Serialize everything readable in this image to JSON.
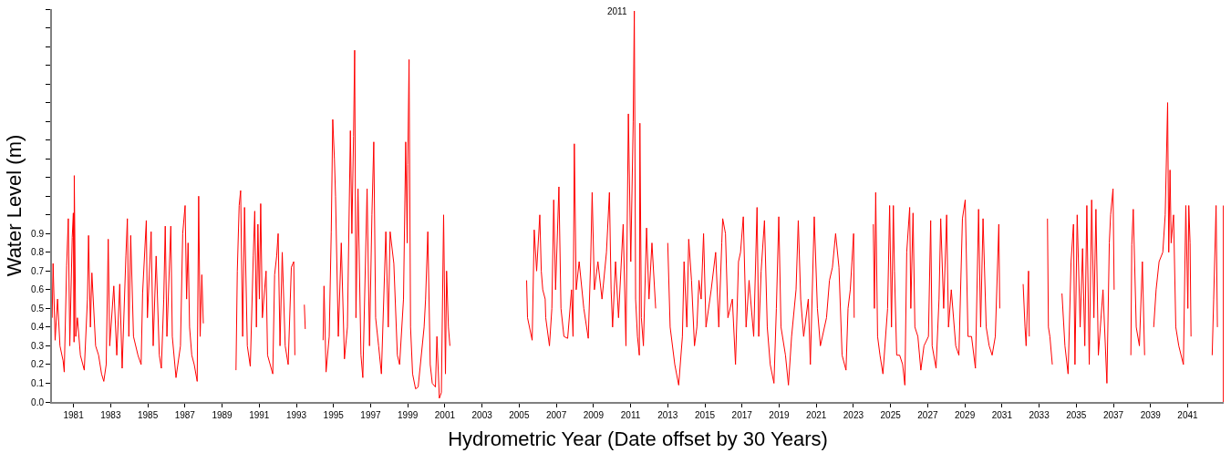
{
  "chart_data": {
    "type": "line",
    "xlabel": "Hydrometric Year (Date offset by 30 Years)",
    "ylabel": "Water Level (m)",
    "xlim": [
      1979.84,
      2042.94
    ],
    "xticks": [
      1981,
      1983,
      1985,
      1987,
      1989,
      1991,
      1993,
      1995,
      1997,
      1999,
      2001,
      2003,
      2005,
      2007,
      2009,
      2011,
      2013,
      2015,
      2017,
      2019,
      2021,
      2023,
      2025,
      2027,
      2029,
      2031,
      2033,
      2035,
      2037,
      2039,
      2041
    ],
    "ylim": [
      0,
      2.1
    ],
    "yticks": [
      {
        "value": 0,
        "label": "0.0"
      },
      {
        "value": 0.1,
        "label": "0.1"
      },
      {
        "value": 0.2,
        "label": "0.2"
      },
      {
        "value": 0.3,
        "label": "0.3"
      },
      {
        "value": 0.4,
        "label": "0.4"
      },
      {
        "value": 0.5,
        "label": "0.5"
      },
      {
        "value": 0.6,
        "label": "0.6"
      },
      {
        "value": 0.7,
        "label": "0.7"
      },
      {
        "value": 0.8,
        "label": "0.8"
      },
      {
        "value": 0.9,
        "label": "0.9"
      },
      {
        "value": 1.0,
        "label": null
      },
      {
        "value": 1.1,
        "label": null
      },
      {
        "value": 1.2,
        "label": null
      },
      {
        "value": 1.3,
        "label": null
      },
      {
        "value": 1.4,
        "label": null
      },
      {
        "value": 1.5,
        "label": null
      },
      {
        "value": 1.6,
        "label": null
      },
      {
        "value": 1.7,
        "label": null
      },
      {
        "value": 1.8,
        "label": null
      },
      {
        "value": 1.9,
        "label": null
      },
      {
        "value": 2.0,
        "label": null
      },
      {
        "value": 2.1,
        "label": null
      }
    ],
    "marker": "none",
    "line_style": "solid",
    "annotations": [
      {
        "text": "2011",
        "x": 2011.21,
        "y": 2.09
      }
    ],
    "series": [
      {
        "color": "#ff0000",
        "x": [
          1979.85,
          1979.9,
          1980.01,
          1980.14,
          1980.27,
          1980.44,
          1980.5,
          1980.63,
          1980.72,
          1980.8,
          1980.93,
          1980.99,
          1981.03,
          1981.04,
          1981.12,
          1981.21,
          1981.37,
          1981.58,
          1981.75,
          1981.81,
          1981.91,
          1981.99,
          1982.19,
          1982.35,
          1982.51,
          1982.63,
          1982.76,
          1982.87,
          1982.95,
          1983.17,
          1983.33,
          1983.49,
          1983.62,
          1983.82,
          1983.9,
          1983.98,
          1984.08,
          1984.23,
          1984.47,
          1984.64,
          1984.72,
          1984.92,
          1984.98,
          1985.18,
          1985.29,
          1985.45,
          1985.62,
          1985.73,
          1985.86,
          1985.94,
          1986.03,
          1986.24,
          1986.32,
          1986.52,
          1986.76,
          1986.88,
          1987.01,
          1987.09,
          1987.17,
          1987.25,
          1987.37,
          1987.5,
          1987.66,
          1987.74,
          1987.82,
          1987.91,
          1987.99,
          1988.5,
          1989.75,
          1989.82,
          1989.92,
          1990.0,
          1990.11,
          1990.21,
          1990.36,
          1990.52,
          1990.68,
          1990.76,
          1990.85,
          1990.93,
          1991.01,
          1991.08,
          1991.17,
          1991.37,
          1991.45,
          1991.73,
          1991.83,
          1991.94,
          1992.02,
          1992.12,
          1992.24,
          1992.4,
          1992.56,
          1992.73,
          1992.86,
          1992.92,
          1993.2,
          1993.43,
          1993.48,
          1994.0,
          1994.44,
          1994.49,
          1994.6,
          1994.77,
          1994.88,
          1994.96,
          1995.05,
          1995.11,
          1995.26,
          1995.42,
          1995.59,
          1995.75,
          1995.91,
          1995.99,
          1996.08,
          1996.14,
          1996.21,
          1996.32,
          1996.48,
          1996.58,
          1996.81,
          1996.94,
          1997.07,
          1997.17,
          1997.27,
          1997.43,
          1997.58,
          1997.82,
          1997.95,
          1998.05,
          1998.25,
          1998.44,
          1998.56,
          1998.77,
          1998.89,
          1998.97,
          1999.0,
          1999.07,
          1999.15,
          1999.26,
          1999.42,
          1999.56,
          1999.88,
          1999.96,
          2000.08,
          2000.21,
          2000.32,
          2000.49,
          2000.57,
          2000.7,
          2000.81,
          2000.93,
          2001.03,
          2001.09,
          2001.19,
          2001.27,
          2003.0,
          2005.4,
          2005.45,
          2005.7,
          2005.81,
          2005.94,
          2006.11,
          2006.19,
          2006.27,
          2006.4,
          2006.43,
          2006.63,
          2006.76,
          2006.86,
          2006.96,
          2007.14,
          2007.25,
          2007.41,
          2007.61,
          2007.82,
          2007.9,
          2007.97,
          2008.07,
          2008.23,
          2008.48,
          2008.72,
          2008.85,
          2008.93,
          2009.05,
          2009.24,
          2009.46,
          2009.7,
          2009.86,
          2009.95,
          2010.03,
          2010.19,
          2010.35,
          2010.6,
          2010.75,
          2010.88,
          2011.01,
          2011.14,
          2011.2,
          2011.27,
          2011.37,
          2011.47,
          2011.5,
          2011.58,
          2011.69,
          2011.86,
          2011.99,
          2012.15,
          2012.35,
          2012.7,
          2013.0,
          2013.13,
          2013.38,
          2013.59,
          2013.79,
          2013.88,
          2014.03,
          2014.13,
          2014.28,
          2014.44,
          2014.57,
          2014.68,
          2014.8,
          2014.93,
          2015.06,
          2015.34,
          2015.58,
          2015.75,
          2015.91,
          2015.96,
          2016.11,
          2016.24,
          2016.48,
          2016.65,
          2016.81,
          2016.92,
          2017.07,
          2017.22,
          2017.38,
          2017.63,
          2017.81,
          2017.9,
          2018.03,
          2018.21,
          2018.36,
          2018.52,
          2018.72,
          2018.85,
          2018.98,
          2019.1,
          2019.34,
          2019.5,
          2019.67,
          2019.91,
          2020.03,
          2020.16,
          2020.32,
          2020.57,
          2020.68,
          2020.89,
          2021.06,
          2021.22,
          2021.55,
          2021.71,
          2021.87,
          2022.04,
          2022.22,
          2022.39,
          2022.6,
          2022.71,
          2022.83,
          2022.92,
          2023.01,
          2023.04,
          2023.5,
          2024.07,
          2024.13,
          2024.2,
          2024.3,
          2024.43,
          2024.59,
          2024.84,
          2024.95,
          2025.05,
          2025.15,
          2025.21,
          2025.33,
          2025.49,
          2025.65,
          2025.77,
          2025.87,
          2026.03,
          2026.09,
          2026.21,
          2026.31,
          2026.47,
          2026.63,
          2026.8,
          2027.04,
          2027.16,
          2027.24,
          2027.45,
          2027.61,
          2027.7,
          2027.86,
          2028.02,
          2028.12,
          2028.27,
          2028.51,
          2028.68,
          2028.87,
          2029.02,
          2029.17,
          2029.36,
          2029.57,
          2029.74,
          2029.85,
          2029.98,
          2030.15,
          2030.31,
          2030.47,
          2030.64,
          2030.83,
          2030.88,
          2031.5,
          2032.14,
          2032.24,
          2032.3,
          2032.43,
          2032.47,
          2033.0,
          2033.45,
          2033.5,
          2033.58,
          2033.71,
          2034.0,
          2034.23,
          2034.39,
          2034.56,
          2034.72,
          2034.85,
          2034.93,
          2035.05,
          2035.21,
          2035.34,
          2035.46,
          2035.57,
          2035.7,
          2035.83,
          2035.95,
          2036.06,
          2036.19,
          2036.44,
          2036.65,
          2036.78,
          2036.85,
          2036.98,
          2037.04,
          2037.5,
          2037.94,
          2037.99,
          2038.07,
          2038.23,
          2038.4,
          2038.56,
          2038.68,
          2038.9,
          2039.17,
          2039.3,
          2039.46,
          2039.66,
          2039.79,
          2039.92,
          2039.98,
          2040.05,
          2040.11,
          2040.24,
          2040.36,
          2040.52,
          2040.77,
          2040.9,
          2041.01,
          2041.06,
          2041.13,
          2041.18,
          2041.8,
          2042.32,
          2042.4,
          2042.53,
          2042.6,
          2042.75,
          2042.92,
          2042.92
        ],
        "values": [
          0.45,
          0.74,
          0.33,
          0.55,
          0.3,
          0.22,
          0.16,
          0.73,
          0.98,
          0.3,
          0.88,
          1.01,
          0.32,
          1.21,
          0.35,
          0.45,
          0.25,
          0.17,
          0.55,
          0.89,
          0.4,
          0.69,
          0.3,
          0.25,
          0.15,
          0.11,
          0.2,
          0.87,
          0.3,
          0.62,
          0.25,
          0.63,
          0.18,
          0.78,
          0.98,
          0.35,
          0.89,
          0.35,
          0.25,
          0.2,
          0.58,
          0.97,
          0.45,
          0.91,
          0.3,
          0.78,
          0.25,
          0.18,
          0.55,
          0.94,
          0.35,
          0.94,
          0.35,
          0.13,
          0.3,
          0.9,
          1.05,
          0.55,
          0.85,
          0.4,
          0.25,
          0.2,
          0.11,
          1.1,
          0.35,
          0.68,
          0.42,
          null,
          0.17,
          0.7,
          1.05,
          1.13,
          0.35,
          1.04,
          0.3,
          0.19,
          0.78,
          1.02,
          0.4,
          0.95,
          0.55,
          1.06,
          0.45,
          0.7,
          0.25,
          0.15,
          0.68,
          0.78,
          0.9,
          0.3,
          0.8,
          0.3,
          0.2,
          0.72,
          0.75,
          0.25,
          null,
          0.52,
          0.39,
          null,
          0.33,
          0.62,
          0.16,
          0.35,
          0.91,
          1.51,
          1.3,
          1.1,
          0.35,
          0.85,
          0.23,
          0.4,
          1.45,
          0.9,
          1.42,
          1.88,
          0.45,
          1.14,
          0.25,
          0.13,
          1.14,
          0.3,
          1.0,
          1.39,
          0.45,
          0.3,
          0.15,
          0.91,
          0.4,
          0.91,
          0.74,
          0.25,
          0.2,
          0.55,
          1.39,
          0.85,
          1.27,
          1.83,
          0.4,
          0.15,
          0.07,
          0.08,
          0.4,
          0.55,
          0.91,
          0.2,
          0.1,
          0.08,
          0.35,
          0.02,
          0.05,
          1.0,
          0.15,
          0.7,
          0.4,
          0.3,
          null,
          0.65,
          0.45,
          0.33,
          0.92,
          0.7,
          1.0,
          0.7,
          0.6,
          0.55,
          0.45,
          0.3,
          0.5,
          1.08,
          0.6,
          1.15,
          0.5,
          0.35,
          0.34,
          0.6,
          0.35,
          1.38,
          0.6,
          0.75,
          0.5,
          0.34,
          0.75,
          1.12,
          0.6,
          0.75,
          0.55,
          0.8,
          1.12,
          0.6,
          0.4,
          0.75,
          0.45,
          0.95,
          0.3,
          1.54,
          0.75,
          1.5,
          2.09,
          0.55,
          0.35,
          0.25,
          1.49,
          0.45,
          0.3,
          0.93,
          0.55,
          0.85,
          0.5,
          null,
          0.85,
          0.4,
          0.2,
          0.09,
          0.35,
          0.75,
          0.4,
          0.87,
          0.65,
          0.3,
          0.4,
          0.65,
          0.55,
          0.9,
          0.4,
          0.6,
          0.8,
          0.4,
          0.85,
          0.98,
          0.9,
          0.45,
          0.55,
          0.2,
          0.75,
          0.8,
          0.99,
          0.4,
          0.65,
          0.35,
          1.04,
          0.35,
          0.7,
          0.97,
          0.4,
          0.2,
          0.1,
          0.5,
          0.99,
          0.4,
          0.25,
          0.09,
          0.35,
          0.6,
          0.97,
          0.55,
          0.35,
          0.55,
          0.2,
          0.99,
          0.5,
          0.3,
          0.45,
          0.65,
          0.72,
          0.9,
          0.72,
          0.25,
          0.17,
          0.5,
          0.6,
          0.75,
          0.9,
          0.45,
          null,
          0.95,
          0.5,
          1.12,
          0.35,
          0.25,
          0.15,
          0.5,
          1.05,
          0.4,
          1.05,
          0.7,
          0.25,
          0.25,
          0.2,
          0.09,
          0.8,
          1.04,
          0.5,
          1.01,
          0.4,
          0.35,
          0.17,
          0.3,
          0.35,
          0.97,
          0.3,
          0.18,
          0.55,
          0.98,
          0.5,
          1.0,
          0.4,
          0.6,
          0.3,
          0.25,
          0.98,
          1.08,
          0.35,
          0.35,
          0.18,
          1.03,
          0.4,
          0.98,
          0.4,
          0.3,
          0.25,
          0.35,
          0.95,
          0.5,
          null,
          0.63,
          0.4,
          0.3,
          0.7,
          0.35,
          null,
          0.98,
          0.4,
          0.35,
          0.2,
          null,
          0.58,
          0.3,
          0.15,
          0.75,
          0.95,
          0.2,
          1.0,
          0.4,
          0.82,
          0.3,
          1.05,
          0.2,
          1.08,
          0.45,
          1.03,
          0.25,
          0.6,
          0.1,
          0.85,
          1.0,
          1.14,
          0.6,
          null,
          0.25,
          0.84,
          1.03,
          0.4,
          0.3,
          0.75,
          0.25,
          null,
          0.4,
          0.6,
          0.75,
          0.8,
          1.0,
          1.6,
          0.8,
          1.24,
          0.85,
          1.0,
          0.4,
          0.3,
          0.2,
          1.05,
          0.5,
          1.05,
          0.85,
          0.35,
          null,
          0.25,
          0.55,
          1.05,
          0.4,
          null,
          1.05,
          0.0
        ]
      }
    ]
  }
}
